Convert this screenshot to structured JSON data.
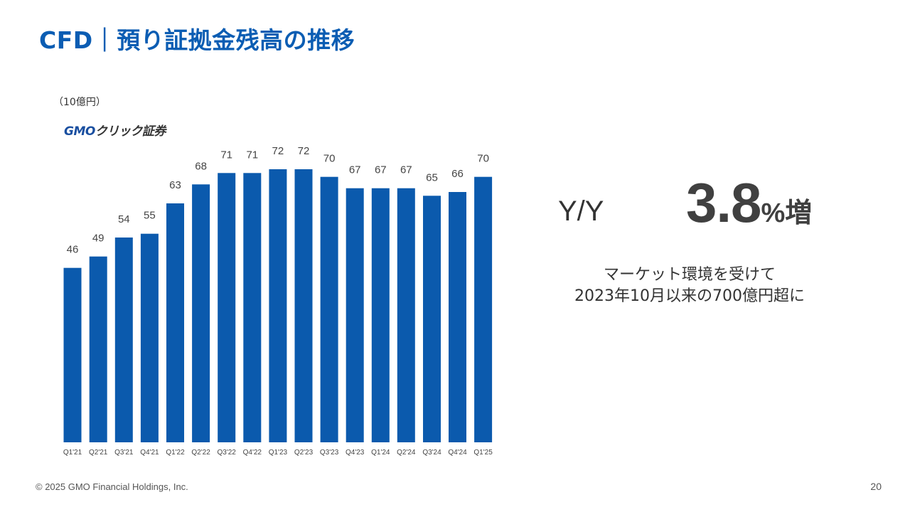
{
  "slide": {
    "title": "CFD｜預り証拠金残高の推移",
    "unit": "（10億円）",
    "logo_main": "GMO",
    "logo_accent": "クリック証券"
  },
  "highlight": {
    "label": "Y/Y",
    "number": "3.8",
    "suffix": "%増",
    "note_line1": "マーケット環境を受けて",
    "note_line2": "2023年10月以来の700億円超に"
  },
  "footer": {
    "copyright": "© 2025 GMO Financial Holdings, Inc.",
    "page": "20"
  },
  "colors": {
    "bar": "#0b5aad",
    "title": "#0b5db3"
  },
  "chart_data": {
    "type": "bar",
    "categories": [
      "Q1'21",
      "Q2'21",
      "Q3'21",
      "Q4'21",
      "Q1'22",
      "Q2'22",
      "Q3'22",
      "Q4'22",
      "Q1'23",
      "Q2'23",
      "Q3'23",
      "Q4'23",
      "Q1'24",
      "Q2'24",
      "Q3'24",
      "Q4'24",
      "Q1'25"
    ],
    "values": [
      46,
      49,
      54,
      55,
      63,
      68,
      71,
      71,
      72,
      72,
      70,
      67,
      67,
      67,
      65,
      66,
      70
    ],
    "ylabel": "（10億円）",
    "ylim": [
      0,
      72
    ],
    "grid": false,
    "data_labels": true
  }
}
